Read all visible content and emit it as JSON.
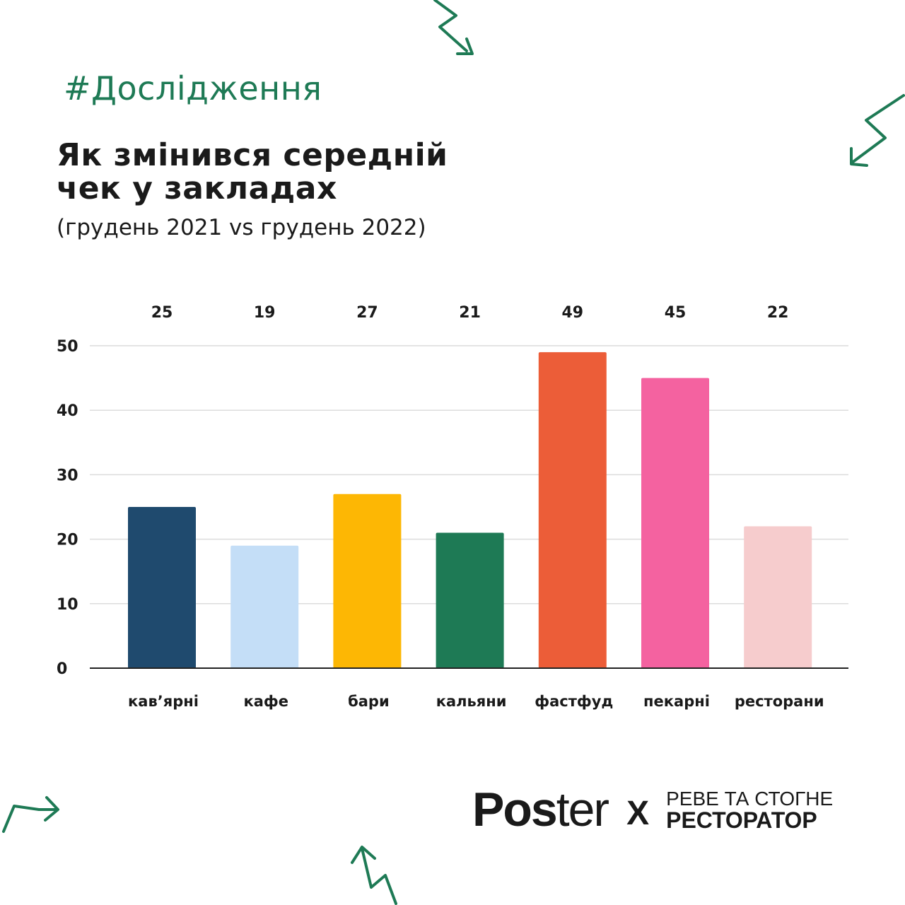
{
  "header": {
    "tag": "#Дослідження",
    "title_line1": "Як змінився середній",
    "title_line2": "чек у закладах",
    "subtitle": "(грудень 2021 vs грудень 2022)"
  },
  "chart_data": {
    "type": "bar",
    "title": "Як змінився середній чек у закладах",
    "subtitle": "(грудень 2021 vs грудень 2022)",
    "categories": [
      "кав’ярні",
      "кафе",
      "бари",
      "кальяни",
      "фастфуд",
      "пекарні",
      "ресторани"
    ],
    "values": [
      25,
      19,
      27,
      21,
      49,
      45,
      22
    ],
    "data_labels": [
      "25",
      "19",
      "27",
      "21",
      "49",
      "45",
      "22"
    ],
    "colors": [
      "#1f4a6e",
      "#c4def7",
      "#fdb704",
      "#1e7a55",
      "#ec5d38",
      "#f462a0",
      "#f6cccd"
    ],
    "yticks": [
      "0",
      "10",
      "20",
      "30",
      "40",
      "50"
    ],
    "ylim": [
      0,
      50
    ],
    "grid": true,
    "xlabel": "",
    "ylabel": ""
  },
  "footer": {
    "poster_bold": "Pos",
    "poster_light": "ter",
    "x": "X",
    "partner_line1": "РЕВЕ ТА СТОГНЕ",
    "partner_line2": "РЕСТОРАТОР"
  },
  "accent_color": "#1e7a55"
}
